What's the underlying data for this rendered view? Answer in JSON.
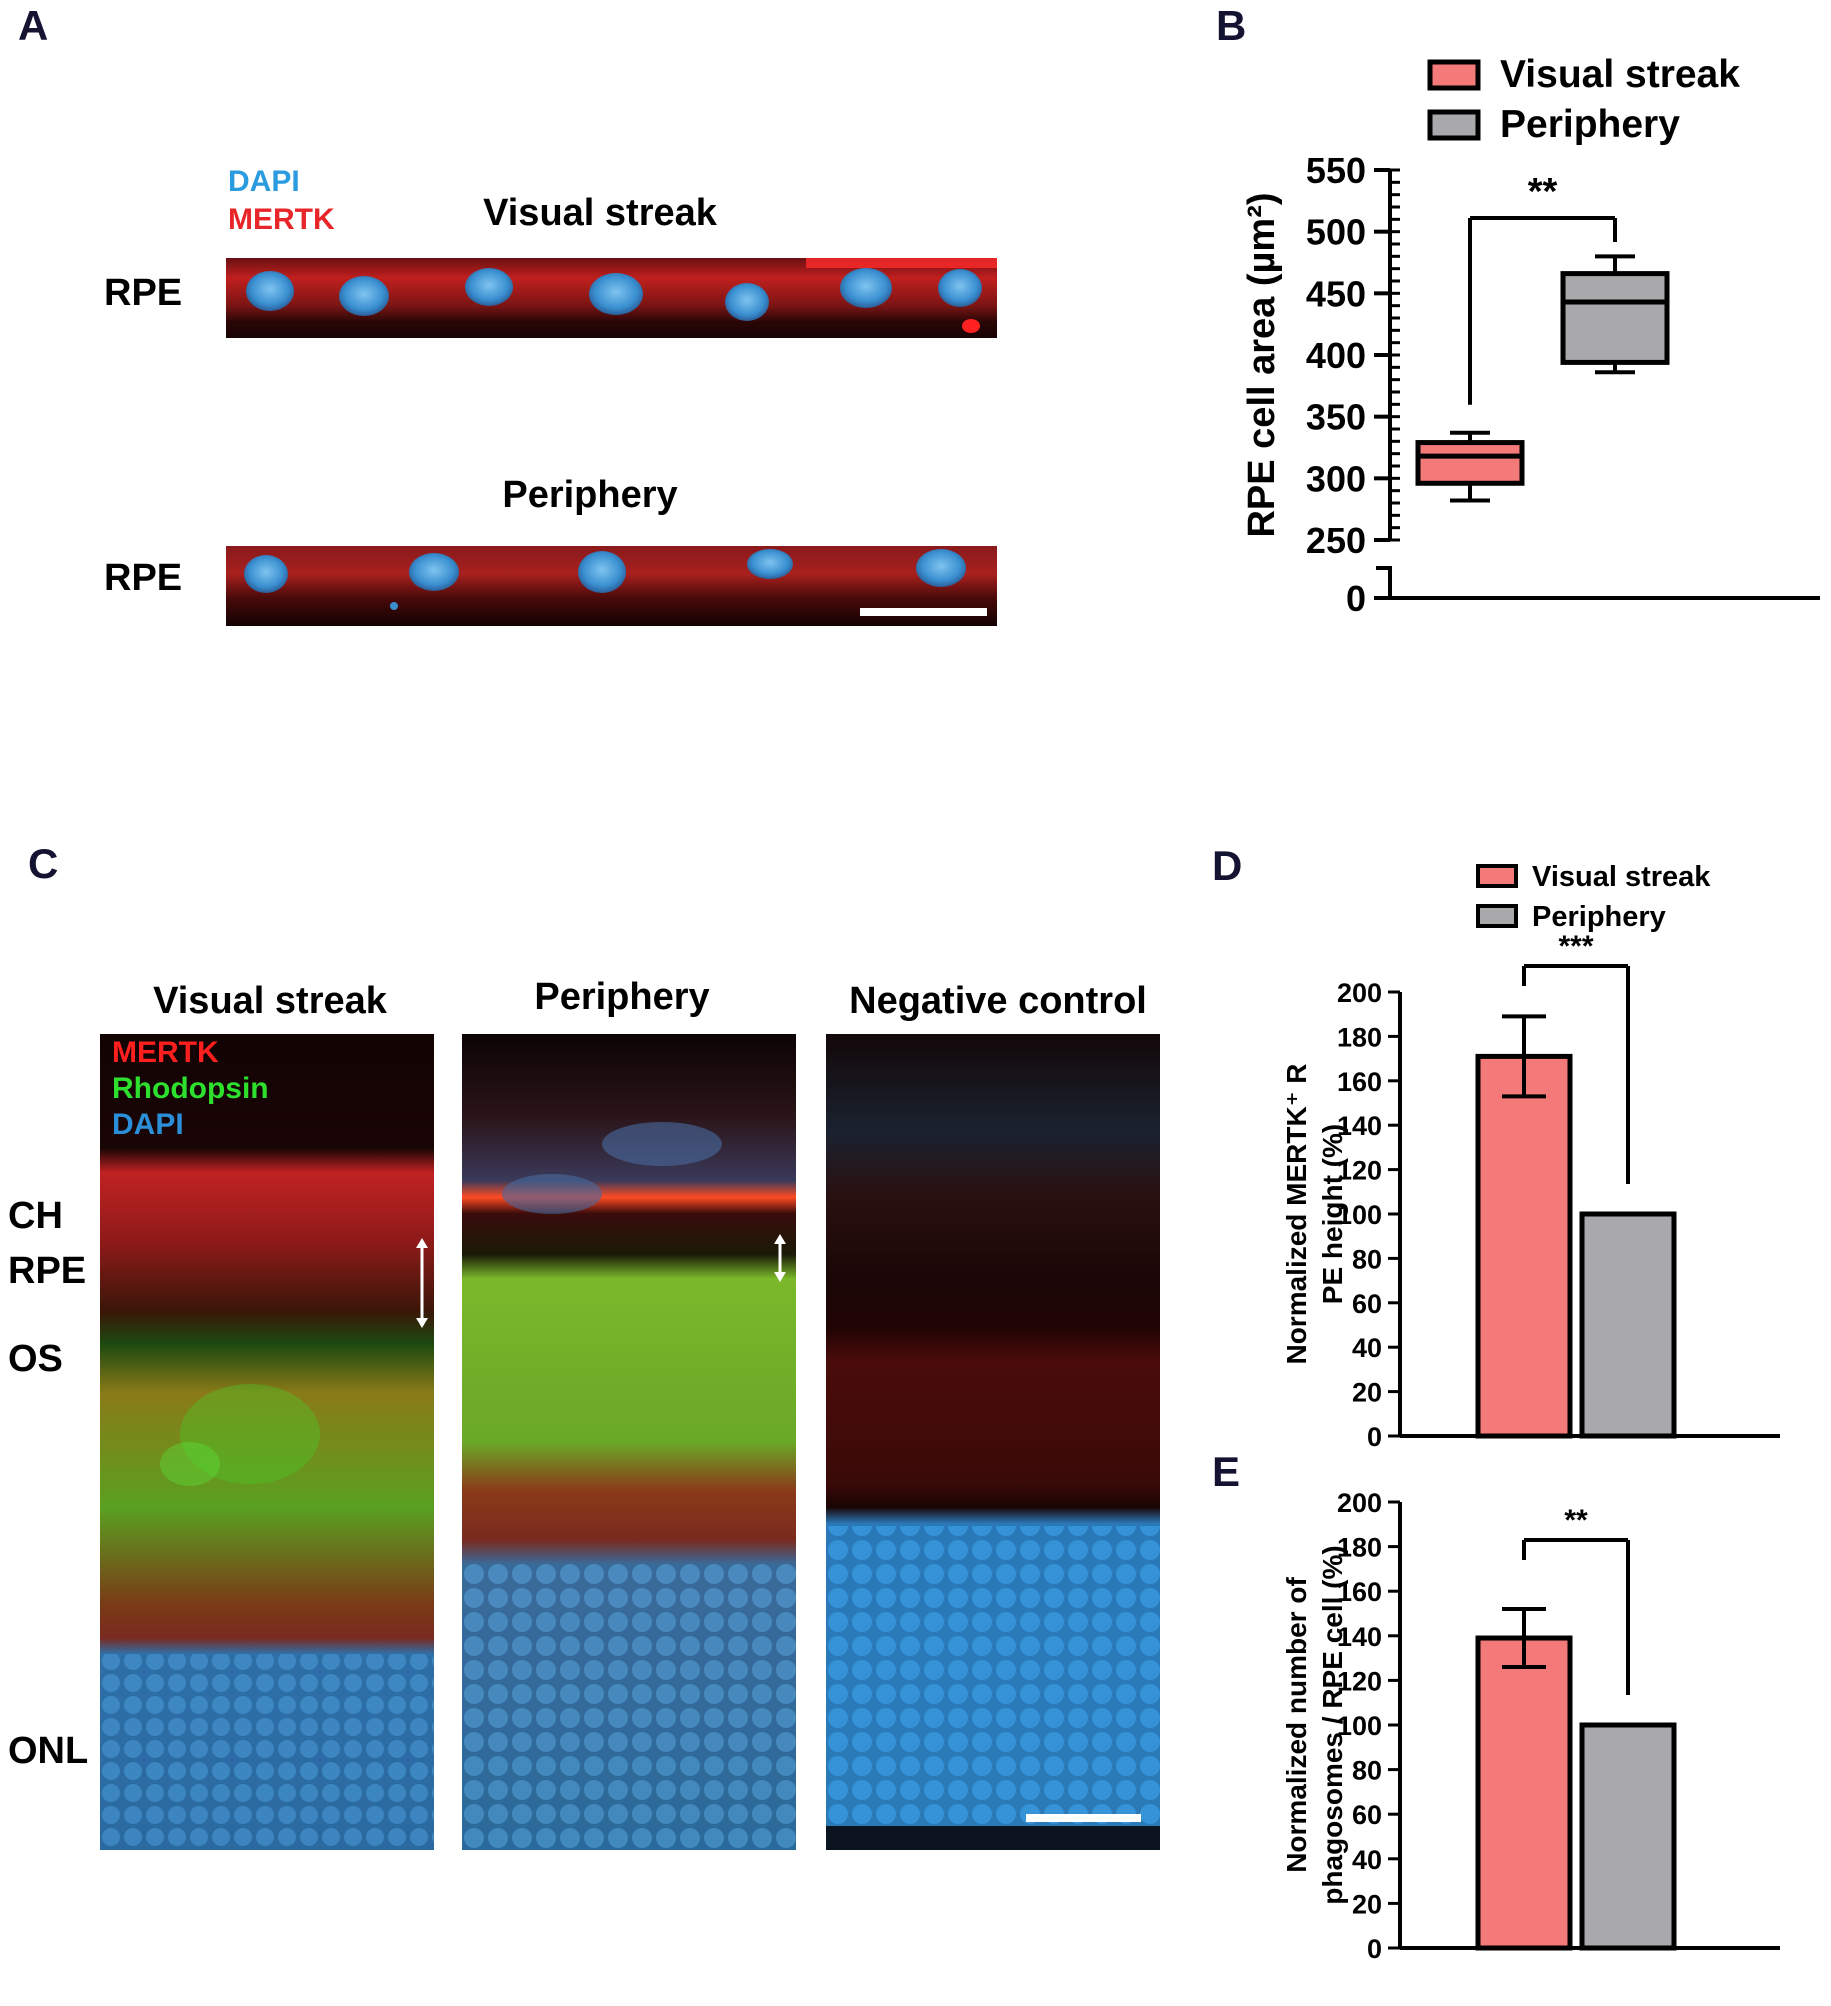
{
  "panels": {
    "A": {
      "letter": "A",
      "stain_dapi": "DAPI",
      "stain_mertk": "MERTK",
      "title_top": "Visual streak",
      "title_bottom": "Periphery",
      "row_label_top": "RPE",
      "row_label_bottom": "RPE",
      "colors": {
        "dapi": "#2b9be0",
        "mertk": "#e8262a"
      }
    },
    "B": {
      "letter": "B"
    },
    "C": {
      "letter": "C",
      "titles": [
        "Visual streak",
        "Periphery",
        "Negative control"
      ],
      "stain_mertk": "MERTK",
      "stain_rhodopsin": "Rhodopsin",
      "stain_dapi": "DAPI",
      "layers": {
        "ch": "CH",
        "rpe": "RPE",
        "os": "OS",
        "onl": "ONL"
      },
      "colors": {
        "mertk": "#ff1f1f",
        "rhodopsin": "#2ee02e",
        "dapi": "#2a8fd8"
      }
    },
    "D": {
      "letter": "D"
    },
    "E": {
      "letter": "E"
    }
  },
  "chart_data": [
    {
      "panel": "B",
      "type": "box",
      "ylabel": "RPE cell area (µm²)",
      "yticks": [
        0,
        250,
        300,
        350,
        400,
        450,
        500,
        550
      ],
      "axis_break": [
        0,
        250
      ],
      "ylim": [
        250,
        550
      ],
      "legend": [
        {
          "label": "Visual streak",
          "color": "#f47a7a"
        },
        {
          "label": "Periphery",
          "color": "#a9a9ab"
        }
      ],
      "legend_position": "top-right",
      "series": [
        {
          "name": "Visual streak",
          "color": "#f47a7a",
          "min": 282,
          "q1": 296,
          "median": 318,
          "q3": 329,
          "max": 337
        },
        {
          "name": "Periphery",
          "color": "#a9a9ab",
          "min": 386,
          "q1": 394,
          "median": 443,
          "q3": 466,
          "max": 480
        }
      ],
      "significance": "**"
    },
    {
      "panel": "D",
      "type": "bar",
      "ylabel": "Normalized MERTK⁺ RPE height (%)",
      "yticks": [
        0,
        20,
        40,
        60,
        80,
        100,
        120,
        140,
        160,
        180,
        200
      ],
      "ylim": [
        0,
        200
      ],
      "legend": [
        {
          "label": "Visual streak",
          "color": "#f47a7a"
        },
        {
          "label": "Periphery",
          "color": "#a9a9ab"
        }
      ],
      "legend_position": "top-right",
      "categories": [
        "Visual streak",
        "Periphery"
      ],
      "values": [
        171,
        100
      ],
      "errors": [
        18,
        0
      ],
      "colors": [
        "#f47a7a",
        "#a9a9ab"
      ],
      "significance": "***"
    },
    {
      "panel": "E",
      "type": "bar",
      "ylabel": "Normalized number of phagosomes / RPE cell (%)",
      "yticks": [
        0,
        20,
        40,
        60,
        80,
        100,
        120,
        140,
        160,
        180,
        200
      ],
      "ylim": [
        0,
        200
      ],
      "categories": [
        "Visual streak",
        "Periphery"
      ],
      "values": [
        139,
        100
      ],
      "errors": [
        13,
        0
      ],
      "colors": [
        "#f47a7a",
        "#a9a9ab"
      ],
      "significance": "**"
    }
  ]
}
